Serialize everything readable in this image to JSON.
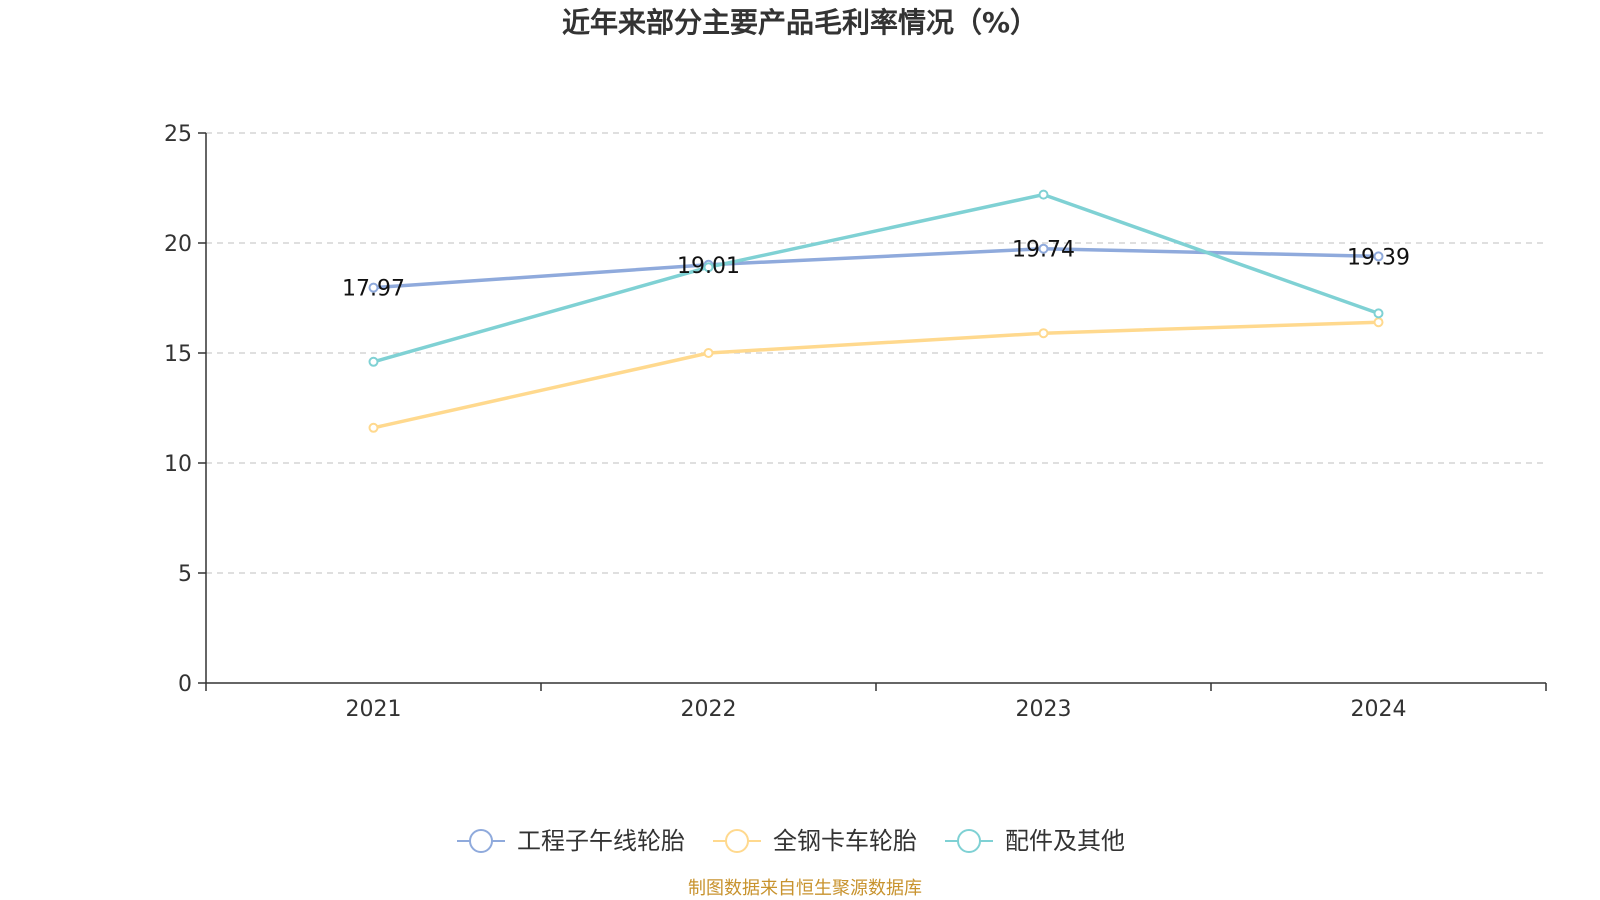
{
  "chart_data": {
    "type": "line",
    "title": "近年来部分主要产品毛利率情况（%）",
    "categories": [
      "2021",
      "2022",
      "2023",
      "2024"
    ],
    "ylim": [
      0,
      25
    ],
    "yticks": [
      0,
      5,
      10,
      15,
      20,
      25
    ],
    "grid": true,
    "legend_position": "bottom",
    "series": [
      {
        "name": "工程子午线轮胎",
        "color": "#8FAADC",
        "values": [
          17.97,
          19.01,
          19.74,
          19.39
        ],
        "labels": [
          "17.97",
          "19.01",
          "19.74",
          "19.39"
        ]
      },
      {
        "name": "全钢卡车轮胎",
        "color": "#FFD98E",
        "values": [
          11.6,
          15.0,
          15.9,
          16.4
        ],
        "labels": []
      },
      {
        "name": "配件及其他",
        "color": "#7FD1D4",
        "values": [
          14.6,
          18.9,
          22.2,
          16.8
        ],
        "labels": []
      }
    ]
  },
  "source": {
    "text": "制图数据来自恒生聚源数据库",
    "color": "#C8932E"
  }
}
